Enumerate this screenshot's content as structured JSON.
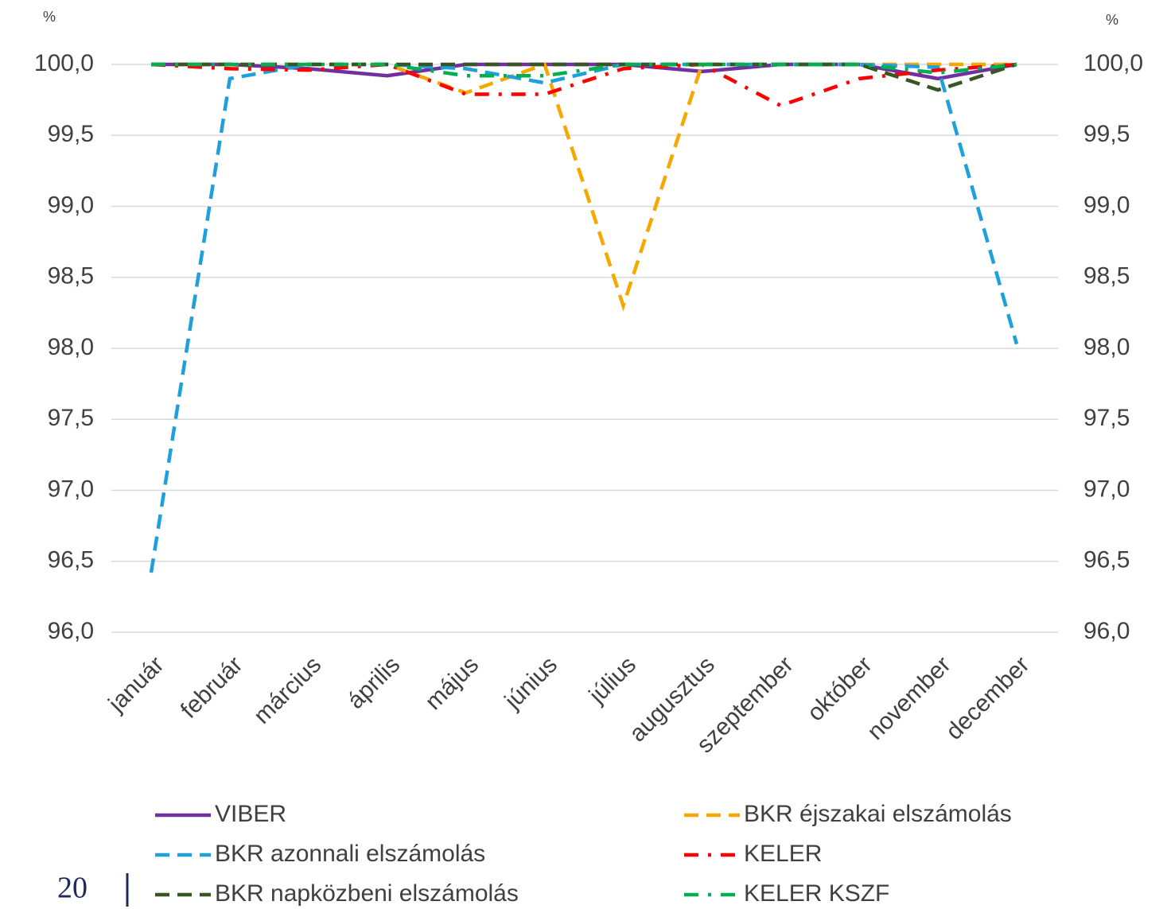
{
  "chart_data": {
    "type": "line",
    "y_unit": "%",
    "y2_unit": "%",
    "categories": [
      "január",
      "február",
      "március",
      "április",
      "május",
      "június",
      "július",
      "augusztus",
      "szeptember",
      "október",
      "november",
      "december"
    ],
    "series": [
      {
        "name": "VIBER",
        "color": "#7030a0",
        "style": "solid",
        "values": [
          100,
          100,
          99.97,
          99.92,
          100,
          100,
          100,
          99.95,
          100,
          100,
          99.9,
          100
        ]
      },
      {
        "name": "BKR éjszakai elszámolás",
        "color": "#f5a800",
        "style": "dash",
        "values": [
          100,
          100,
          100,
          100,
          99.8,
          100,
          98.3,
          100,
          100,
          100,
          100,
          100
        ]
      },
      {
        "name": "BKR azonnali elszámolás",
        "color": "#1fa0dc",
        "style": "dash",
        "values": [
          96.42,
          99.9,
          100,
          100,
          99.97,
          99.87,
          100,
          100,
          100,
          100,
          99.98,
          98.03
        ]
      },
      {
        "name": "KELER",
        "color": "#ff0000",
        "style": "dashdot",
        "values": [
          100,
          99.97,
          99.96,
          100,
          99.79,
          99.79,
          99.97,
          100,
          99.71,
          99.9,
          99.96,
          100
        ]
      },
      {
        "name": "BKR napközbeni elszámolás",
        "color": "#375623",
        "style": "dash",
        "values": [
          100,
          100,
          100,
          100,
          100,
          100,
          100,
          100,
          100,
          100,
          99.82,
          100
        ]
      },
      {
        "name": "KELER KSZF",
        "color": "#00b050",
        "style": "dashdot",
        "values": [
          100,
          100,
          100,
          100,
          99.92,
          99.92,
          100,
          100,
          100,
          100,
          99.94,
          100
        ]
      }
    ],
    "ylim": [
      96,
      100
    ],
    "yticks": [
      {
        "value": 96,
        "label": "96,0"
      },
      {
        "value": 96.5,
        "label": "96,5"
      },
      {
        "value": 97,
        "label": "97,0"
      },
      {
        "value": 97.5,
        "label": "97,5"
      },
      {
        "value": 98,
        "label": "98,0"
      },
      {
        "value": 98.5,
        "label": "98,5"
      },
      {
        "value": 99,
        "label": "99,0"
      },
      {
        "value": 99.5,
        "label": "99,5"
      },
      {
        "value": 100,
        "label": "100,0"
      }
    ],
    "y2lim": [
      96,
      100
    ],
    "y2ticks": [
      {
        "value": 96,
        "label": "96,0"
      },
      {
        "value": 96.5,
        "label": "96,5"
      },
      {
        "value": 97,
        "label": "97,0"
      },
      {
        "value": 97.5,
        "label": "97,5"
      },
      {
        "value": 98,
        "label": "98,0"
      },
      {
        "value": 98.5,
        "label": "98,5"
      },
      {
        "value": 99,
        "label": "99,0"
      },
      {
        "value": 99.5,
        "label": "99,5"
      },
      {
        "value": 100,
        "label": "100,0"
      }
    ],
    "grid": true
  },
  "footer": {
    "page_number": "20"
  }
}
